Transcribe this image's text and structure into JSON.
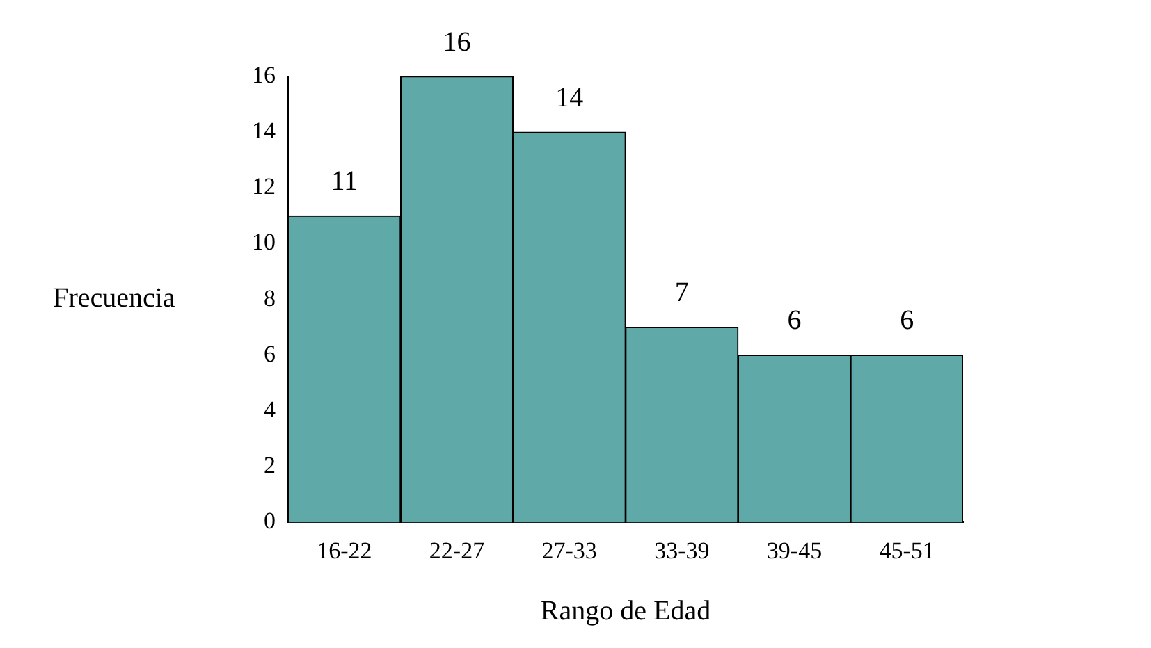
{
  "chart_data": {
    "type": "bar",
    "xlabel": "Rango de Edad",
    "ylabel": "Frecuencia",
    "categories": [
      "16-22",
      "22-27",
      "27-33",
      "33-39",
      "39-45",
      "45-51"
    ],
    "values": [
      11,
      16,
      14,
      7,
      6,
      6
    ],
    "color": "#5fa9a9",
    "ylim": [
      0,
      16
    ],
    "yticks": [
      0,
      2,
      4,
      6,
      8,
      10,
      12,
      14,
      16
    ],
    "data_labels": true,
    "grid": false,
    "legend": false
  }
}
